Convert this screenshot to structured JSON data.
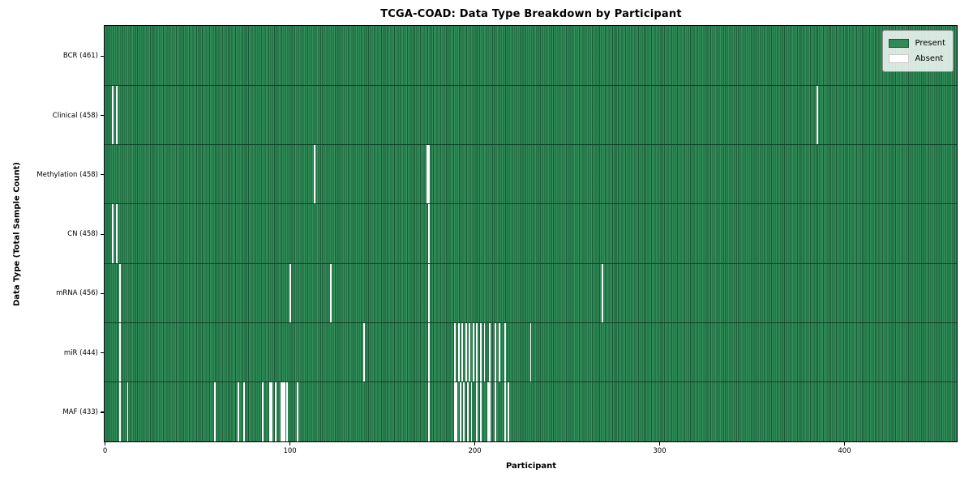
{
  "figure": {
    "title": "TCGA-COAD: Data Type Breakdown by Participant",
    "xlabel": "Participant",
    "ylabel": "Data Type (Total Sample Count)"
  },
  "legend": {
    "items": [
      {
        "label": "Present",
        "color": "#2e8b57"
      },
      {
        "label": "Absent",
        "color": "#ffffff"
      }
    ]
  },
  "chart_data": {
    "type": "heatmap",
    "title": "TCGA-COAD: Data Type Breakdown by Participant",
    "xlabel": "Participant",
    "ylabel": "Data Type (Total Sample Count)",
    "legend_position": "upper right",
    "x_ticks": [
      0,
      100,
      200,
      300,
      400
    ],
    "x_range": [
      0,
      461
    ],
    "n_participants": 461,
    "colors": {
      "present_fill": "#2e8b57",
      "present_edge": "#1a5835",
      "absent_fill": "#ffffff",
      "row_boundary": "#114026"
    },
    "rows": [
      {
        "label": "BCR (461)",
        "data_type": "BCR",
        "total": 461,
        "absent_participants": []
      },
      {
        "label": "Clinical (458)",
        "data_type": "Clinical",
        "total": 458,
        "absent_participants": [
          4,
          6,
          385
        ]
      },
      {
        "label": "Methylation (458)",
        "data_type": "Methylation",
        "total": 458,
        "absent_participants": [
          113,
          174,
          175
        ]
      },
      {
        "label": "CN (458)",
        "data_type": "CN",
        "total": 458,
        "absent_participants": [
          4,
          6,
          175
        ]
      },
      {
        "label": "mRNA (456)",
        "data_type": "mRNA",
        "total": 456,
        "absent_participants": [
          8,
          100,
          122,
          175,
          269
        ]
      },
      {
        "label": "miR (444)",
        "data_type": "miR",
        "total": 444,
        "absent_participants": [
          8,
          140,
          175,
          189,
          191,
          193,
          195,
          197,
          199,
          201,
          203,
          205,
          208,
          211,
          213,
          216,
          230
        ]
      },
      {
        "label": "MAF (433)",
        "data_type": "MAF",
        "total": 433,
        "absent_participants": [
          8,
          12,
          59,
          72,
          75,
          85,
          89,
          90,
          92,
          95,
          96,
          97,
          98,
          104,
          175,
          189,
          190,
          192,
          194,
          196,
          198,
          201,
          203,
          207,
          208,
          211,
          216,
          218
        ]
      }
    ]
  }
}
